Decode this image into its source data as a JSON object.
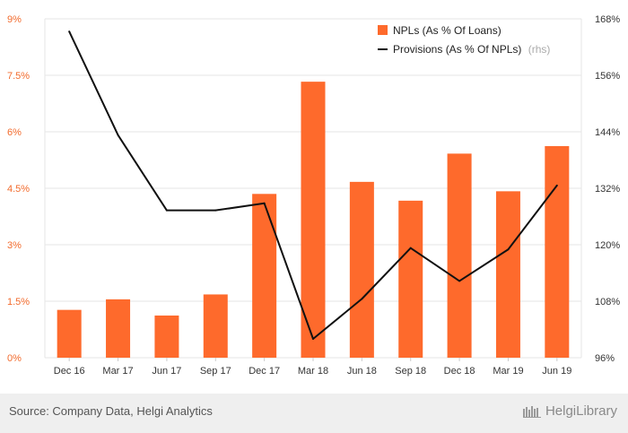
{
  "chart_data": {
    "type": "bar",
    "categories": [
      "Dec 16",
      "Mar 17",
      "Jun 17",
      "Sep 17",
      "Dec 17",
      "Mar 18",
      "Jun 18",
      "Sep 18",
      "Dec 18",
      "Mar 19",
      "Jun 19"
    ],
    "series": [
      {
        "name": "NPLs (As % Of Loans)",
        "type": "bar",
        "axis": "left",
        "values": [
          1.27,
          1.55,
          1.12,
          1.68,
          4.35,
          7.33,
          4.67,
          4.17,
          5.42,
          4.42,
          5.62
        ]
      },
      {
        "name": "Provisions (As % Of NPLs)",
        "type": "line",
        "axis": "right",
        "values": [
          165.3,
          143.3,
          127.3,
          127.3,
          128.8,
          100.0,
          108.5,
          119.3,
          112.3,
          119.0,
          132.6
        ]
      }
    ],
    "left_axis": {
      "range": [
        0,
        9
      ],
      "ticks": [
        "0%",
        "1.5%",
        "3%",
        "4.5%",
        "6%",
        "7.5%",
        "9%"
      ]
    },
    "right_axis": {
      "range": [
        96,
        168
      ],
      "ticks": [
        "96%",
        "108%",
        "120%",
        "132%",
        "144%",
        "156%",
        "168%"
      ]
    },
    "legend": {
      "position": "top-right",
      "items": [
        "NPLs (As % Of Loans)",
        "Provisions (As % Of NPLs)"
      ],
      "rhs_note": "(rhs)"
    },
    "grid": true,
    "colors": {
      "bar": "#fe6a2c",
      "line": "#111111",
      "left_tick": "#f26b2d",
      "right_tick": "#333333",
      "grid": "#e5e5e5"
    }
  },
  "footer": {
    "source": "Source: Company Data, Helgi Analytics",
    "brand": "HelgiLibrary"
  }
}
